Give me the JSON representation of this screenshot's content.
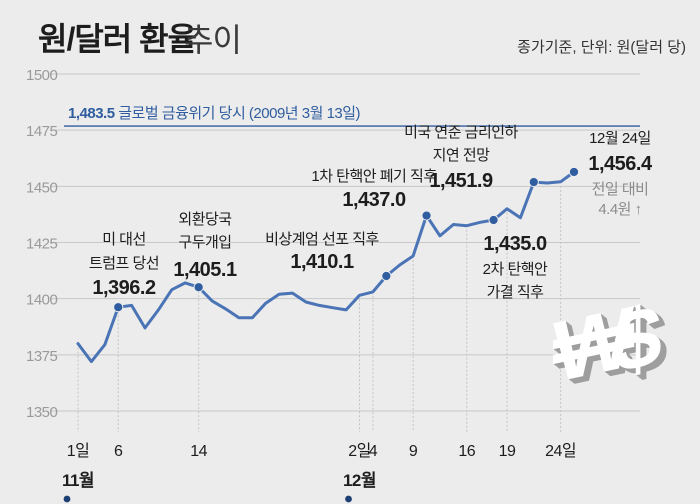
{
  "title": {
    "main": "원/달러 환율",
    "sub": "추이",
    "note": "종가기준, 단위: 원(달러 당)"
  },
  "colors": {
    "line": "#4a74b6",
    "point": "#2f5d9f",
    "reference": "#2f5d9f",
    "grid": "#c8c8c8",
    "tick": "#9a9a9a",
    "text": "#1d1d1d"
  },
  "chart_data": {
    "type": "line",
    "ylim": [
      1350,
      1500
    ],
    "yticks": [
      1350,
      1375,
      1400,
      1425,
      1450,
      1475,
      1500
    ],
    "x_labels": [
      {
        "i": 0,
        "text": "1일"
      },
      {
        "i": 3,
        "text": "6"
      },
      {
        "i": 9,
        "text": "14"
      },
      {
        "i": 21,
        "text": "2일"
      },
      {
        "i": 22,
        "text": "4"
      },
      {
        "i": 25,
        "text": "9"
      },
      {
        "i": 29,
        "text": "16"
      },
      {
        "i": 32,
        "text": "19"
      },
      {
        "i": 36,
        "text": "24일"
      }
    ],
    "month_labels": [
      {
        "i": 0,
        "text": "11월"
      },
      {
        "i": 21,
        "text": "12월"
      }
    ],
    "series": [
      {
        "values": [
          1380.0,
          1372.0,
          1379.5,
          1396.2,
          1397.0,
          1387.0,
          1395.0,
          1404.0,
          1407.0,
          1405.1,
          1399.0,
          1395.5,
          1391.5,
          1391.5,
          1398.0,
          1402.0,
          1402.5,
          1398.5,
          1397.0,
          1396.0,
          1395.0,
          1401.5,
          1403.0,
          1410.1,
          1415.0,
          1419.0,
          1437.0,
          1428.0,
          1433.0,
          1432.5,
          1434.0,
          1435.0,
          1440.0,
          1436.0,
          1451.9,
          1451.5,
          1452.0,
          1456.4
        ]
      }
    ],
    "reference_line": {
      "value": 1483.5,
      "value_label": "1,483.5",
      "text": "글로벌 금융위기 당시 (2009년 3월 13일)"
    },
    "points": [
      {
        "i": 3,
        "value": 1396.2
      },
      {
        "i": 9,
        "value": 1405.1
      },
      {
        "i": 23,
        "value": 1410.1
      },
      {
        "i": 26,
        "value": 1437.0
      },
      {
        "i": 31,
        "value": 1435.0
      },
      {
        "i": 34,
        "value": 1451.9
      },
      {
        "i": 37,
        "value": 1456.4
      }
    ],
    "annotations": [
      {
        "lines": [
          "미 대선",
          "트럼프 당선"
        ],
        "value_label": "1,396.2"
      },
      {
        "lines": [
          "외환당국",
          "구두개입"
        ],
        "value_label": "1,405.1"
      },
      {
        "lines": [
          "비상계엄 선포 직후"
        ],
        "value_label": "1,410.1"
      },
      {
        "lines": [
          "1차 탄핵안 폐기 직후"
        ],
        "value_label": "1,437.0"
      },
      {
        "lines": [
          "2차 탄핵안",
          "가결 직후"
        ],
        "value_label": "1,435.0"
      },
      {
        "lines": [
          "미국 연준 금리인하",
          "지연 전망"
        ],
        "value_label": "1,451.9"
      },
      {
        "lines": [
          "12월 24일"
        ],
        "value_label": "1,456.4",
        "sub_lines": [
          "전일 대비",
          "4.4원 ↑"
        ]
      }
    ],
    "illustration": "won-dollar-symbols"
  }
}
